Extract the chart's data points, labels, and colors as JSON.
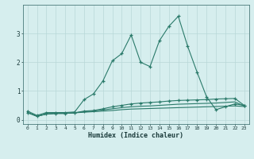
{
  "xlabel": "Humidex (Indice chaleur)",
  "x": [
    0,
    1,
    2,
    3,
    4,
    5,
    6,
    7,
    8,
    9,
    10,
    11,
    12,
    13,
    14,
    15,
    16,
    17,
    18,
    19,
    20,
    21,
    22,
    23
  ],
  "series1": [
    0.3,
    0.15,
    0.25,
    0.25,
    0.25,
    0.27,
    0.7,
    0.9,
    1.35,
    2.05,
    2.3,
    2.95,
    2.0,
    1.85,
    2.75,
    3.25,
    3.6,
    2.55,
    1.65,
    0.8,
    0.35,
    0.45,
    0.55,
    0.5
  ],
  "series2": [
    0.25,
    0.12,
    0.2,
    0.22,
    0.22,
    0.24,
    0.3,
    0.32,
    0.38,
    0.45,
    0.5,
    0.55,
    0.58,
    0.6,
    0.62,
    0.65,
    0.67,
    0.68,
    0.69,
    0.7,
    0.72,
    0.73,
    0.74,
    0.5
  ],
  "series3": [
    0.25,
    0.12,
    0.2,
    0.22,
    0.22,
    0.24,
    0.28,
    0.3,
    0.34,
    0.38,
    0.42,
    0.45,
    0.47,
    0.48,
    0.5,
    0.52,
    0.54,
    0.55,
    0.56,
    0.57,
    0.58,
    0.6,
    0.62,
    0.48
  ],
  "series4": [
    0.25,
    0.12,
    0.2,
    0.22,
    0.22,
    0.24,
    0.26,
    0.28,
    0.3,
    0.32,
    0.35,
    0.37,
    0.38,
    0.39,
    0.4,
    0.41,
    0.42,
    0.43,
    0.44,
    0.45,
    0.46,
    0.47,
    0.48,
    0.46
  ],
  "line_color": "#2a7a6a",
  "bg_color": "#d6eeee",
  "grid_color": "#b8d8d8",
  "ylim": [
    -0.15,
    4.0
  ],
  "xlim": [
    -0.5,
    23.5
  ],
  "yticks": [
    0,
    1,
    2,
    3
  ],
  "xticks": [
    0,
    1,
    2,
    3,
    4,
    5,
    6,
    7,
    8,
    9,
    10,
    11,
    12,
    13,
    14,
    15,
    16,
    17,
    18,
    19,
    20,
    21,
    22,
    23
  ]
}
